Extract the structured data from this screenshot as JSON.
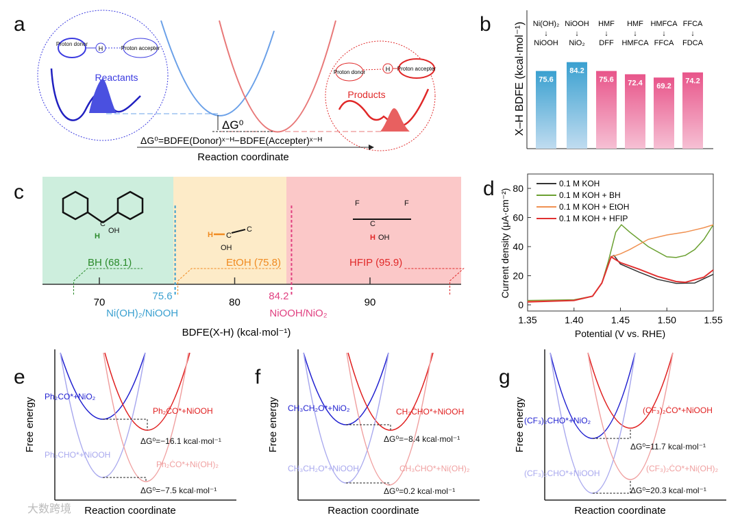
{
  "panel_labels": [
    "a",
    "b",
    "c",
    "d",
    "e",
    "f",
    "g"
  ],
  "panel_a": {
    "donor": "Proton donor",
    "accepter": "Proton accepter",
    "h": "H",
    "reactants": "Reactants",
    "products": "Products",
    "dg": "ΔG⁰",
    "equation": "ΔG⁰=BDFE(Donor)ˣ⁻ᴴ−BDFE(Accepter)ˣ⁻ᴴ",
    "xlabel": "Reaction coordinate",
    "colors": {
      "blue": "#3a3ae0",
      "red": "#e02828",
      "curve_blue": "#6aa0e8",
      "curve_red": "#e87878"
    }
  },
  "panel_c": {
    "molecules": [
      {
        "name": "BH (68.1)",
        "bdfe": 68.1,
        "color": "#2a8a2a"
      },
      {
        "name": "EtOH (75.8)",
        "bdfe": 75.8,
        "color": "#f08a20"
      },
      {
        "name": "HFIP (95.9)",
        "bdfe": 95.9,
        "color": "#e02828"
      }
    ],
    "thresholds": [
      {
        "value_label": "75.6",
        "name": "Ni(OH)₂/NiOOH",
        "value": 75.6,
        "color": "#3aa0d0"
      },
      {
        "value_label": "84.2",
        "name": "NiOOH/NiO₂",
        "value": 84.2,
        "color": "#e04080"
      }
    ],
    "ticks": [
      "70",
      "80",
      "90"
    ],
    "xlabel": "BDFE(X-H) (kcal·mol⁻¹)",
    "atoms": {
      "H": "H",
      "C": "C",
      "OH": "OH",
      "F": "F"
    }
  },
  "panel_efg": {
    "ylabel": "Free energy",
    "xlabel": "Reaction coordinate",
    "e": {
      "r1": "Ph₂CO*+NiO₂",
      "p1": "Ph₂ĊO*+NiOOH",
      "dg1": "ΔG⁰=−16.1 kcal·mol⁻¹",
      "r2": "Ph₂CHO*+NiOOH",
      "p2": "Ph₂ĊO*+Ni(OH)₂",
      "dg2": "ΔG⁰=−7.5 kcal·mol⁻¹"
    },
    "f": {
      "r1": "CH₃CH₂O*+NiO₂",
      "p1": "CH₃ĊHO*+NiOOH",
      "dg1": "ΔG⁰=−8.4 kcal·mol⁻¹",
      "r2": "CH₃CH₂O*+NiOOH",
      "p2": "CH₃ĊHO*+Ni(OH)₂",
      "dg2": "ΔG⁰=0.2 kcal·mol⁻¹"
    },
    "g": {
      "r1": "(CF₃)₂CHO*+NiO₂",
      "p1": "(CF₃)₂ĊO*+NiOOH",
      "dg1": "ΔG⁰=11.7 kcal·mol⁻¹",
      "r2": "(CF₃)₂CHO*+NiOOH",
      "p2": "(CF₃)₂ĊO*+Ni(OH)₂",
      "dg2": "ΔG⁰=20.3 kcal·mol⁻¹"
    }
  },
  "watermark": "大数跨境",
  "chart_data": [
    {
      "type": "bar",
      "panel": "b",
      "ylabel": "X–H BDFE (kcal·mol⁻¹)",
      "categories": [
        {
          "from": "Ni(OH)₂",
          "to": "NiOOH"
        },
        {
          "from": "NiOOH",
          "to": "NiO₂"
        },
        {
          "from": "HMF",
          "to": "DFF"
        },
        {
          "from": "HMF",
          "to": "HMFCA"
        },
        {
          "from": "HMFCA",
          "to": "FFCA"
        },
        {
          "from": "FFCA",
          "to": "FDCA"
        }
      ],
      "arrow": "↓",
      "values": [
        75.6,
        84.2,
        75.6,
        72.4,
        69.2,
        74.2
      ],
      "value_labels": [
        "75.6",
        "84.2",
        "75.6",
        "72.4",
        "69.2",
        "74.2"
      ],
      "colors": [
        "#3aa0d0",
        "#3aa0d0",
        "#e8558a",
        "#e8558a",
        "#e8558a",
        "#e8558a"
      ],
      "ylim": [
        0,
        90
      ]
    },
    {
      "type": "line",
      "panel": "d",
      "xlabel": "Potential (V vs. RHE)",
      "ylabel": "Current density (μA·cm⁻²)",
      "xlim": [
        1.35,
        1.55
      ],
      "ylim": [
        -5,
        90
      ],
      "xticks": [
        "1.35",
        "1.40",
        "1.45",
        "1.50",
        "1.55"
      ],
      "yticks": [
        "0",
        "20",
        "40",
        "60",
        "80"
      ],
      "legend": "top-left",
      "series": [
        {
          "name": "0.1 M KOH",
          "color": "#333333",
          "points": [
            [
              1.35,
              2.5
            ],
            [
              1.4,
              3
            ],
            [
              1.42,
              6
            ],
            [
              1.43,
              15
            ],
            [
              1.44,
              33
            ],
            [
              1.443,
              34
            ],
            [
              1.45,
              28
            ],
            [
              1.47,
              22.5
            ],
            [
              1.49,
              17.5
            ],
            [
              1.51,
              14.8
            ],
            [
              1.53,
              15
            ],
            [
              1.55,
              21
            ]
          ]
        },
        {
          "name": "0.1 M KOH + BH",
          "color": "#6aa030",
          "points": [
            [
              1.35,
              3
            ],
            [
              1.4,
              3.5
            ],
            [
              1.42,
              6
            ],
            [
              1.43,
              15
            ],
            [
              1.437,
              30
            ],
            [
              1.445,
              50
            ],
            [
              1.451,
              55
            ],
            [
              1.46,
              50
            ],
            [
              1.48,
              40
            ],
            [
              1.5,
              33
            ],
            [
              1.51,
              32.5
            ],
            [
              1.52,
              34
            ],
            [
              1.53,
              38
            ],
            [
              1.54,
              45
            ],
            [
              1.55,
              55
            ]
          ]
        },
        {
          "name": "0.1 M KOH + EtOH",
          "color": "#f09050",
          "points": [
            [
              1.35,
              2.5
            ],
            [
              1.4,
              3
            ],
            [
              1.42,
              6
            ],
            [
              1.43,
              15
            ],
            [
              1.44,
              33
            ],
            [
              1.45,
              35
            ],
            [
              1.46,
              38
            ],
            [
              1.48,
              45
            ],
            [
              1.5,
              48
            ],
            [
              1.52,
              50
            ],
            [
              1.54,
              53
            ],
            [
              1.55,
              55
            ]
          ]
        },
        {
          "name": "0.1 M KOH + HFIP",
          "color": "#e03030",
          "points": [
            [
              1.35,
              2
            ],
            [
              1.4,
              3
            ],
            [
              1.42,
              6
            ],
            [
              1.43,
              15
            ],
            [
              1.44,
              33
            ],
            [
              1.45,
              29
            ],
            [
              1.47,
              24.5
            ],
            [
              1.49,
              19.5
            ],
            [
              1.51,
              16
            ],
            [
              1.52,
              15.5
            ],
            [
              1.54,
              19
            ],
            [
              1.55,
              24
            ]
          ]
        }
      ]
    }
  ]
}
